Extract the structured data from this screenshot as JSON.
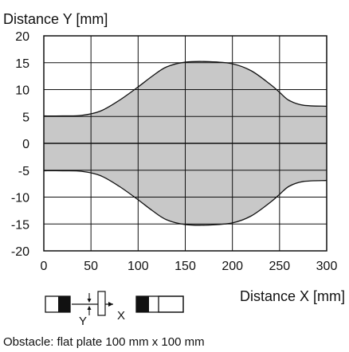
{
  "chart_data": {
    "type": "area",
    "ylabel": "Distance Y [mm]",
    "xlabel": "Distance X [mm]",
    "xlim": [
      0,
      300
    ],
    "ylim": [
      -20,
      20
    ],
    "x_ticks": [
      0,
      50,
      100,
      150,
      200,
      250,
      300
    ],
    "y_ticks": [
      20,
      15,
      10,
      5,
      0,
      -5,
      -10,
      -15,
      -20
    ],
    "grid": true,
    "fill_color": "#c8c8c8",
    "envelope": {
      "x": [
        0,
        20,
        40,
        60,
        80,
        100,
        115,
        130,
        150,
        175,
        200,
        220,
        240,
        250,
        260,
        275,
        300
      ],
      "upper": [
        5.1,
        5.1,
        5.2,
        6.0,
        8.0,
        10.5,
        12.5,
        14.2,
        15.1,
        15.2,
        14.8,
        13.5,
        11.0,
        9.5,
        8.0,
        7.1,
        6.9
      ],
      "lower": [
        -5.1,
        -5.1,
        -5.2,
        -6.0,
        -8.0,
        -10.5,
        -12.5,
        -14.2,
        -15.1,
        -15.2,
        -14.8,
        -13.5,
        -11.0,
        -9.5,
        -8.0,
        -7.1,
        -6.9
      ]
    },
    "diagram": {
      "y_label": "Y",
      "x_label": "X"
    },
    "caption": "Obstacle: flat plate 100 mm x 100 mm"
  }
}
